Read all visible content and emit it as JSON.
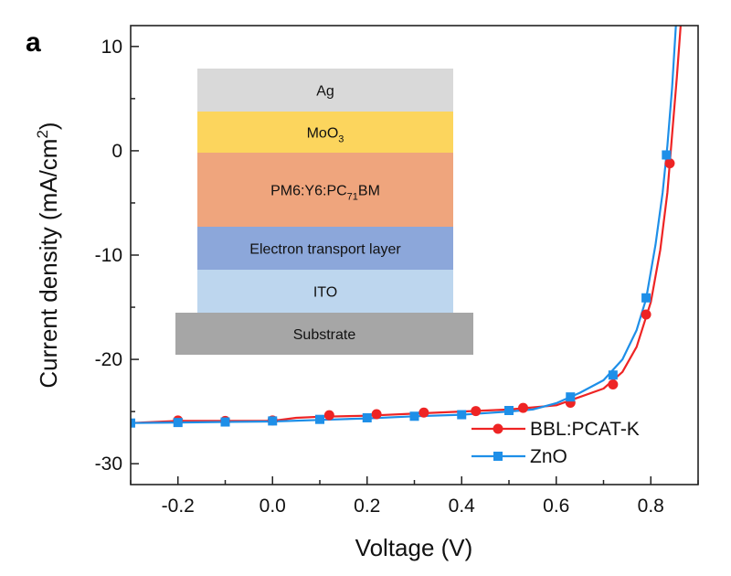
{
  "panel_label": "a",
  "colors": {
    "bbl": "#ee2424",
    "zno": "#1e8fe8"
  },
  "chart_data": {
    "type": "line",
    "xlabel": "Voltage (V)",
    "ylabel_main": "Current density (mA/cm",
    "ylabel_sup": "2",
    "ylabel_end": ")",
    "xlim": [
      -0.3,
      0.9
    ],
    "ylim": [
      -32,
      12
    ],
    "x_ticks": [
      -0.2,
      0.0,
      0.2,
      0.4,
      0.6,
      0.8
    ],
    "x_tick_labels": [
      "-0.2",
      "0.0",
      "0.2",
      "0.4",
      "0.6",
      "0.8"
    ],
    "y_ticks": [
      10,
      0,
      -10,
      -20,
      -30
    ],
    "y_tick_labels": [
      "10",
      "0",
      "-10",
      "-20",
      "-30"
    ],
    "legend_position": "bottom-right",
    "series": [
      {
        "name": "BBL:PCAT-K",
        "marker": "circle",
        "color": "#ee2424",
        "curve": [
          [
            -0.3,
            -26.1
          ],
          [
            -0.2,
            -25.9
          ],
          [
            -0.1,
            -25.9
          ],
          [
            0.0,
            -25.9
          ],
          [
            0.05,
            -25.6
          ],
          [
            0.1,
            -25.5
          ],
          [
            0.2,
            -25.4
          ],
          [
            0.3,
            -25.2
          ],
          [
            0.4,
            -25.0
          ],
          [
            0.5,
            -24.8
          ],
          [
            0.55,
            -24.6
          ],
          [
            0.6,
            -24.4
          ],
          [
            0.65,
            -23.6
          ],
          [
            0.7,
            -22.8
          ],
          [
            0.74,
            -21.2
          ],
          [
            0.77,
            -18.8
          ],
          [
            0.8,
            -14.5
          ],
          [
            0.82,
            -9.5
          ],
          [
            0.835,
            -4.0
          ],
          [
            0.845,
            1.5
          ],
          [
            0.855,
            7.0
          ],
          [
            0.863,
            12.0
          ]
        ],
        "markers": [
          [
            -0.2,
            -25.85
          ],
          [
            -0.1,
            -25.9
          ],
          [
            0.0,
            -25.85
          ],
          [
            0.12,
            -25.35
          ],
          [
            0.22,
            -25.25
          ],
          [
            0.32,
            -25.1
          ],
          [
            0.43,
            -24.95
          ],
          [
            0.53,
            -24.65
          ],
          [
            0.63,
            -24.15
          ],
          [
            0.72,
            -22.4
          ],
          [
            0.79,
            -15.7
          ],
          [
            0.84,
            -1.2
          ]
        ]
      },
      {
        "name": "ZnO",
        "marker": "square",
        "color": "#1e8fe8",
        "curve": [
          [
            -0.3,
            -26.1
          ],
          [
            -0.2,
            -26.05
          ],
          [
            -0.1,
            -26.0
          ],
          [
            0.0,
            -25.95
          ],
          [
            0.1,
            -25.8
          ],
          [
            0.2,
            -25.65
          ],
          [
            0.3,
            -25.45
          ],
          [
            0.4,
            -25.3
          ],
          [
            0.5,
            -25.0
          ],
          [
            0.55,
            -24.8
          ],
          [
            0.6,
            -24.2
          ],
          [
            0.65,
            -23.2
          ],
          [
            0.7,
            -22.0
          ],
          [
            0.74,
            -20.0
          ],
          [
            0.77,
            -17.2
          ],
          [
            0.79,
            -14.2
          ],
          [
            0.81,
            -9.0
          ],
          [
            0.825,
            -4.0
          ],
          [
            0.835,
            0.5
          ],
          [
            0.845,
            6.0
          ],
          [
            0.853,
            12.0
          ]
        ],
        "markers": [
          [
            -0.3,
            -26.1
          ],
          [
            -0.2,
            -26.05
          ],
          [
            -0.1,
            -26.0
          ],
          [
            0.0,
            -25.9
          ],
          [
            0.1,
            -25.75
          ],
          [
            0.2,
            -25.6
          ],
          [
            0.3,
            -25.45
          ],
          [
            0.4,
            -25.3
          ],
          [
            0.5,
            -24.9
          ],
          [
            0.63,
            -23.6
          ],
          [
            0.72,
            -21.5
          ],
          [
            0.79,
            -14.1
          ],
          [
            0.833,
            -0.4
          ]
        ]
      }
    ],
    "inset_layers": [
      {
        "label": "Ag",
        "color": "#d9d9d9"
      },
      {
        "label": "MoO",
        "sub": "3",
        "color": "#fcd55d"
      },
      {
        "label": "PM6:Y6:PC",
        "sub": "71",
        "label_end": "BM",
        "color": "#efa57d"
      },
      {
        "label": "Electron transport layer",
        "color": "#8ca7da"
      },
      {
        "label": "ITO",
        "color": "#bdd6ee"
      },
      {
        "label": "Substrate",
        "color": "#a6a6a6"
      }
    ]
  }
}
